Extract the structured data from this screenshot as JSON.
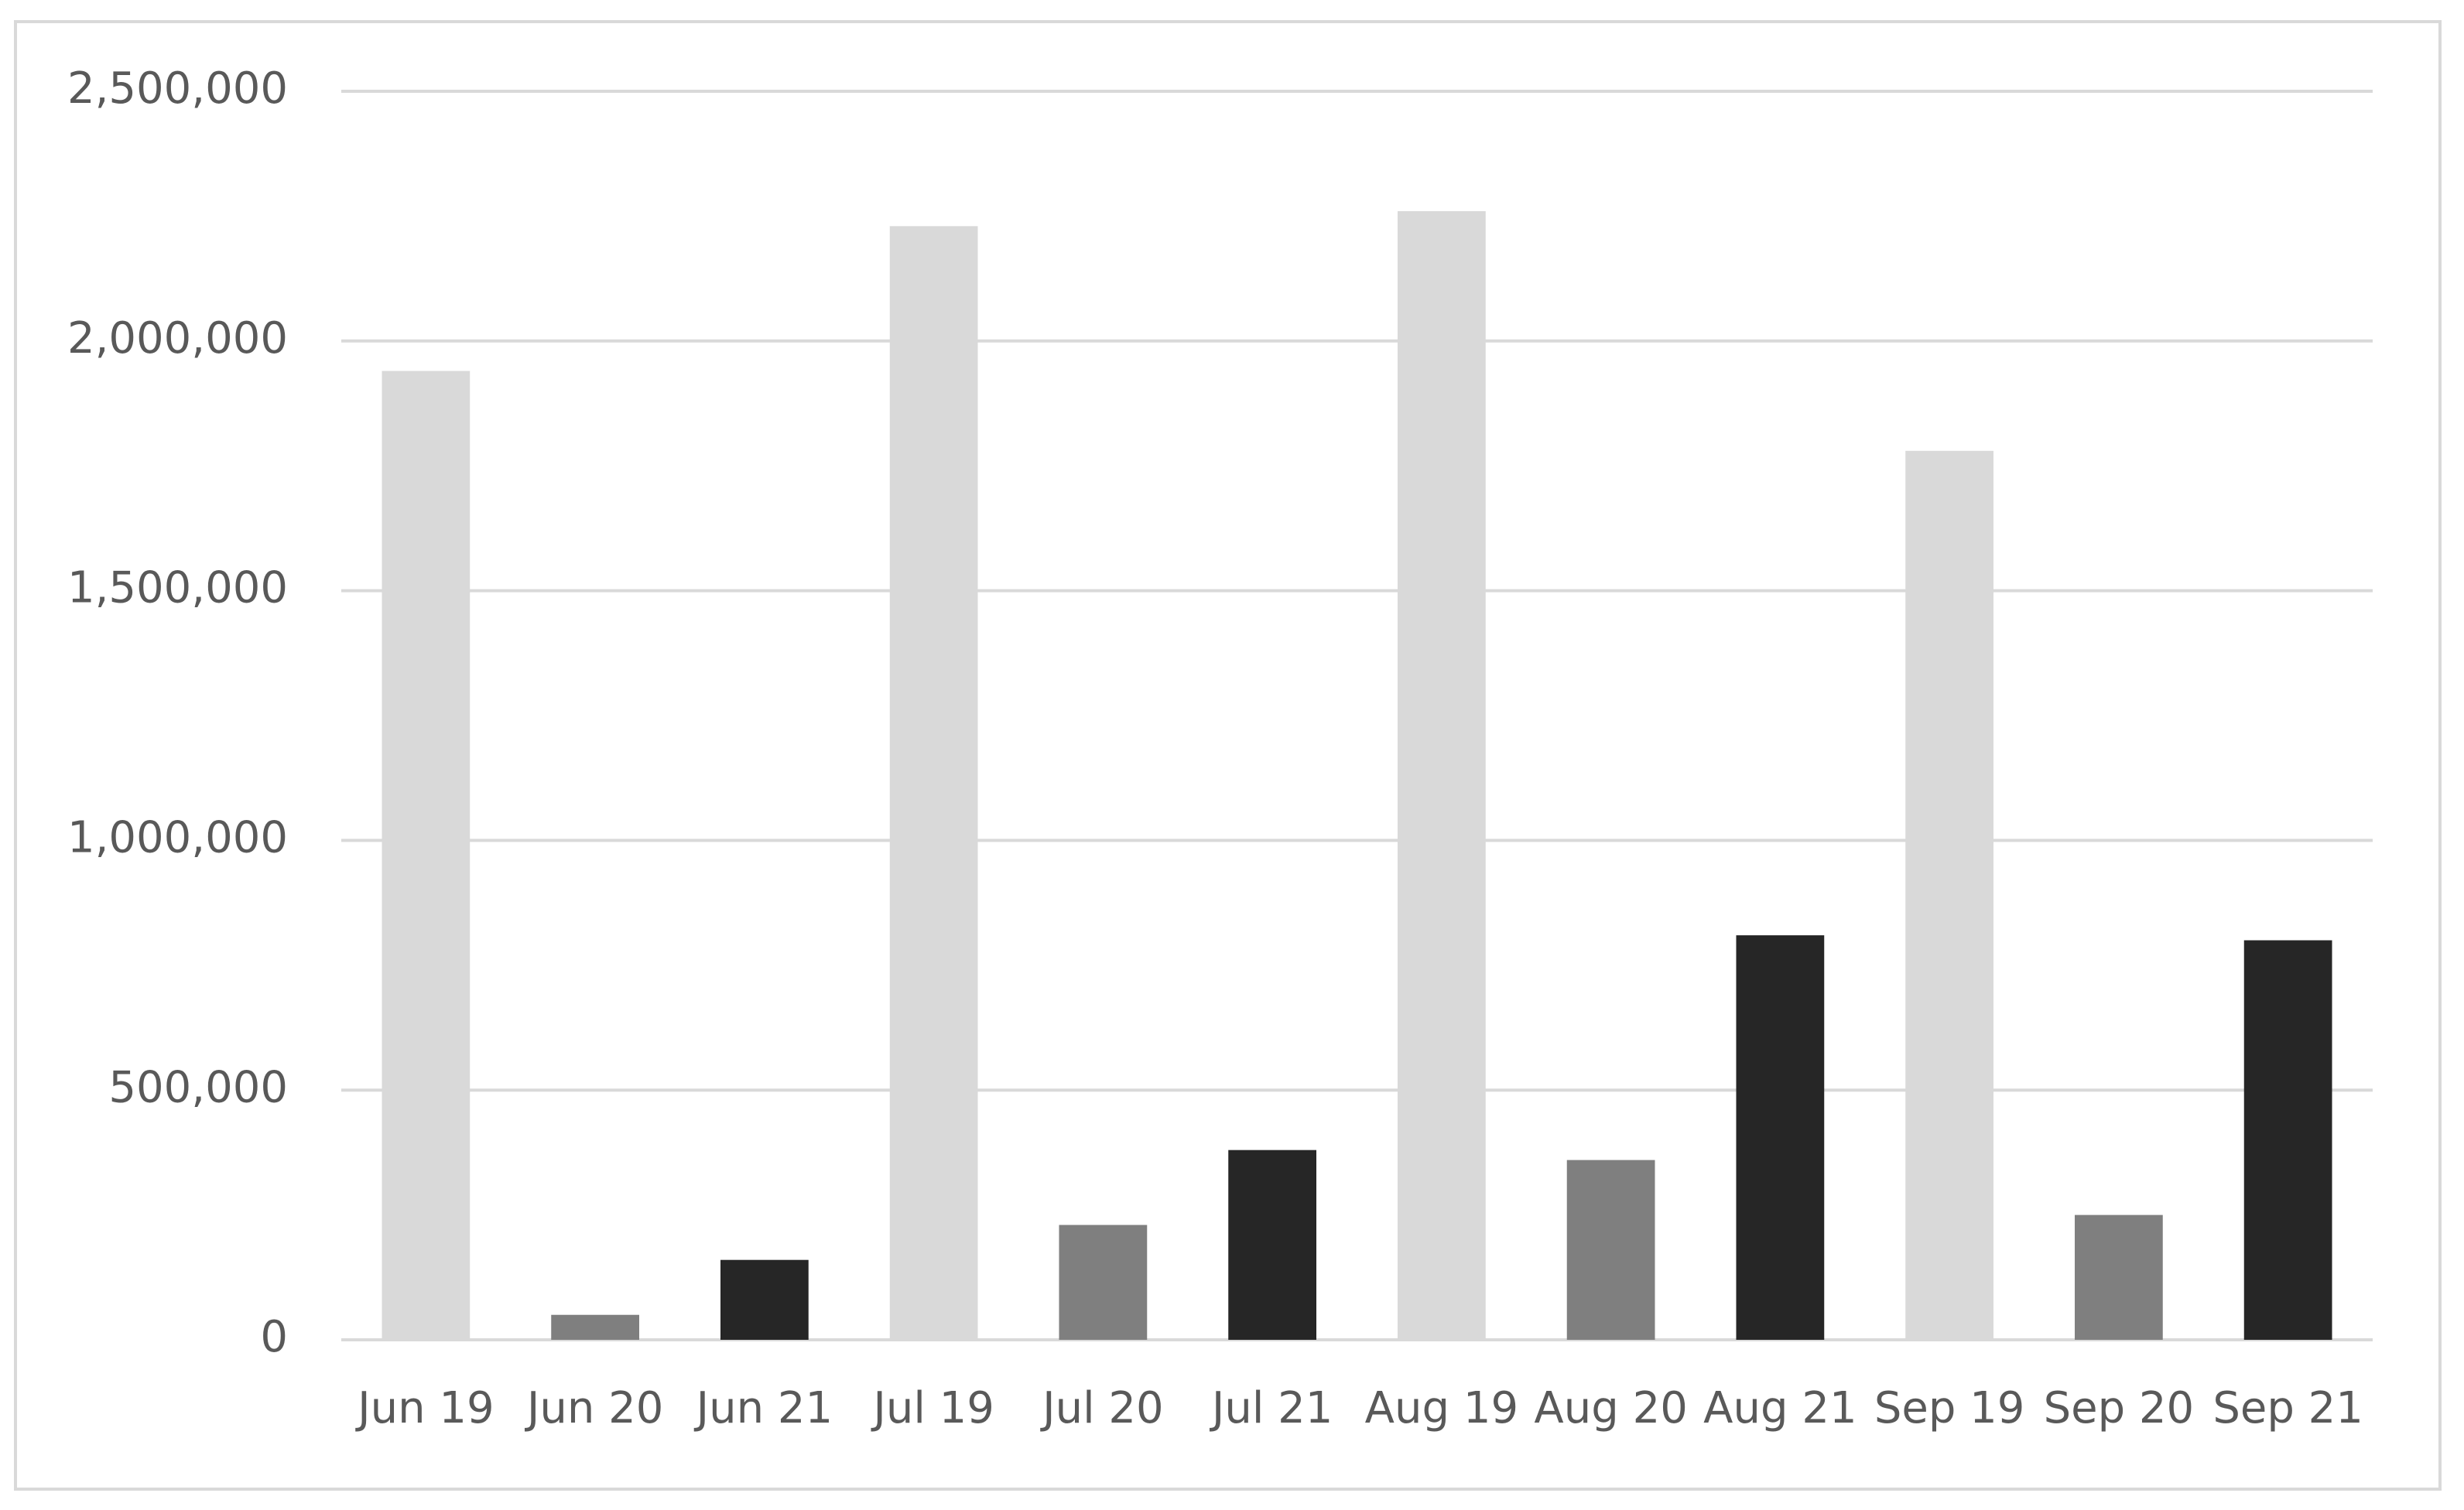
{
  "chart_data": {
    "type": "bar",
    "categories": [
      "Jun 19",
      "Jun 20",
      "Jun 21",
      "Jul 19",
      "Jul 20",
      "Jul 21",
      "Aug 19",
      "Aug 20",
      "Aug 21",
      "Sep 19",
      "Sep 20",
      "Sep 21"
    ],
    "values": [
      1940000,
      50000,
      160000,
      2230000,
      230000,
      380000,
      2260000,
      360000,
      810000,
      1780000,
      250000,
      800000
    ],
    "colors": [
      "#d9d9d9",
      "#7f7f7f",
      "#262626",
      "#d9d9d9",
      "#7f7f7f",
      "#262626",
      "#d9d9d9",
      "#7f7f7f",
      "#262626",
      "#d9d9d9",
      "#7f7f7f",
      "#262626"
    ],
    "ylim": [
      0,
      2500000
    ],
    "yticks": [
      {
        "value": 0,
        "label": "0"
      },
      {
        "value": 500000,
        "label": "500,000"
      },
      {
        "value": 1000000,
        "label": "1,000,000"
      },
      {
        "value": 1500000,
        "label": "1,500,000"
      },
      {
        "value": 2000000,
        "label": "2,000,000"
      },
      {
        "value": 2500000,
        "label": "2,500,000"
      }
    ],
    "grid": true
  }
}
